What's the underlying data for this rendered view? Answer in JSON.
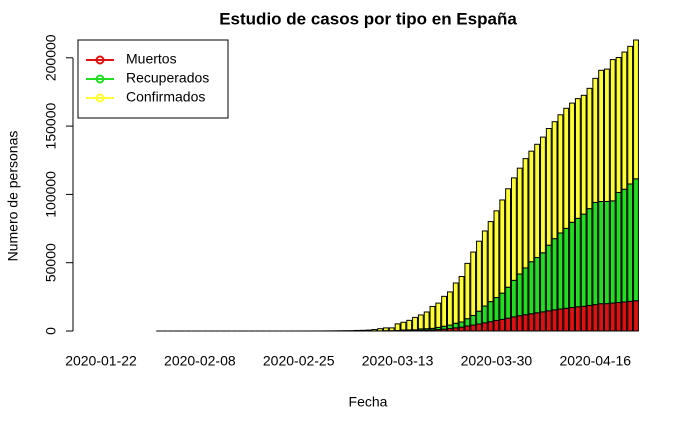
{
  "chart_data": {
    "type": "stacked_bar",
    "title": "Estudio de casos por tipo en España",
    "x_label": "Fecha",
    "y_label": "Numero de personas",
    "categories": [
      "2020-01-22",
      null,
      null,
      null,
      null,
      null,
      null,
      null,
      null,
      null,
      null,
      null,
      null,
      null,
      null,
      null,
      null,
      "2020-02-08",
      null,
      null,
      null,
      null,
      null,
      null,
      null,
      null,
      null,
      null,
      null,
      null,
      null,
      null,
      null,
      null,
      "2020-02-25",
      null,
      null,
      null,
      null,
      null,
      null,
      null,
      null,
      null,
      null,
      null,
      null,
      null,
      null,
      null,
      null,
      "2020-03-13",
      null,
      null,
      null,
      null,
      null,
      null,
      null,
      null,
      null,
      null,
      null,
      null,
      null,
      null,
      null,
      null,
      "2020-03-30",
      null,
      null,
      null,
      null,
      null,
      null,
      null,
      null,
      null,
      null,
      null,
      null,
      null,
      null,
      null,
      null,
      "2020-04-16",
      null,
      null,
      null,
      null,
      null,
      null,
      null
    ],
    "series": [
      {
        "name": "Muertos",
        "color": "#dd1111",
        "values": [
          0,
          0,
          0,
          0,
          0,
          0,
          0,
          0,
          0,
          0,
          0,
          0,
          0,
          0,
          0,
          0,
          0,
          0,
          0,
          0,
          0,
          0,
          0,
          0,
          0,
          0,
          0,
          0,
          0,
          0,
          0,
          0,
          0,
          0,
          0,
          0,
          0,
          0,
          0,
          0,
          0,
          1,
          2,
          3,
          5,
          10,
          17,
          28,
          35,
          54,
          55,
          133,
          195,
          289,
          342,
          533,
          623,
          830,
          1043,
          1375,
          1772,
          2311,
          2808,
          3647,
          4365,
          5138,
          5982,
          6803,
          7716,
          8464,
          9387,
          10348,
          11198,
          11947,
          12641,
          13341,
          14045,
          14792,
          15447,
          16081,
          16606,
          17209,
          17756,
          18056,
          18708,
          19315,
          20002,
          20043,
          20453,
          20852,
          21282,
          21717,
          22157
        ]
      },
      {
        "name": "Recuperados",
        "color": "#22dd22",
        "values": [
          0,
          0,
          0,
          0,
          0,
          0,
          0,
          0,
          0,
          0,
          0,
          0,
          0,
          0,
          0,
          0,
          0,
          0,
          0,
          0,
          0,
          0,
          0,
          0,
          2,
          2,
          2,
          2,
          2,
          2,
          2,
          2,
          2,
          2,
          2,
          2,
          2,
          2,
          2,
          2,
          2,
          2,
          2,
          2,
          2,
          2,
          2,
          32,
          32,
          183,
          183,
          193,
          517,
          517,
          530,
          1028,
          1081,
          1107,
          1588,
          2125,
          2575,
          3355,
          3794,
          5367,
          7015,
          9357,
          12285,
          14709,
          16780,
          19259,
          22647,
          26743,
          30513,
          34219,
          38080,
          40437,
          43208,
          48021,
          52165,
          55668,
          58545,
          62391,
          64727,
          67504,
          70853,
          74797,
          74797,
          74797,
          74797,
          80587,
          82514,
          85915,
          89250
        ]
      },
      {
        "name": "Confirmados",
        "color": "#ffff33",
        "values": [
          0,
          0,
          0,
          0,
          0,
          0,
          0,
          0,
          0,
          0,
          1,
          1,
          1,
          1,
          1,
          1,
          1,
          1,
          2,
          2,
          2,
          2,
          2,
          2,
          0,
          0,
          0,
          0,
          0,
          0,
          0,
          0,
          0,
          0,
          4,
          11,
          13,
          30,
          43,
          82,
          118,
          162,
          218,
          254,
          393,
          488,
          654,
          1013,
          1628,
          2040,
          2039,
          4906,
          5679,
          6992,
          9070,
          10187,
          12206,
          16026,
          17779,
          21874,
          24256,
          29470,
          33283,
          40501,
          46406,
          51224,
          54968,
          58598,
          63460,
          68200,
          72084,
          74974,
          77488,
          80002,
          80925,
          82897,
          84689,
          85407,
          85610,
          86524,
          87876,
          87231,
          87616,
          86981,
          88083,
          90836,
          96040,
          96886,
          103424,
          98771,
          100382,
          100757,
          101617
        ]
      }
    ],
    "ylim": [
      0,
      213024
    ],
    "yticks": [
      0,
      50000,
      100000,
      150000,
      200000
    ],
    "legend": "top-left"
  }
}
